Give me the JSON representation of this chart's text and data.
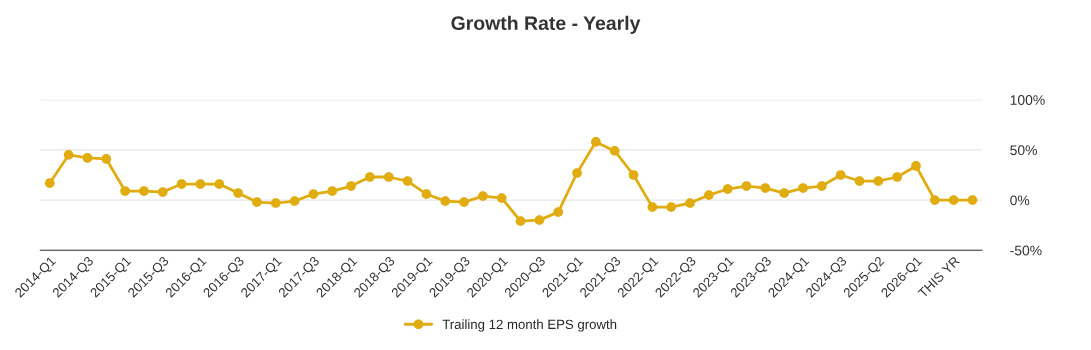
{
  "chart_data": {
    "type": "line",
    "title": "Growth Rate - Yearly",
    "categories": [
      "2014-Q1",
      null,
      "2014-Q3",
      null,
      "2015-Q1",
      null,
      "2015-Q3",
      null,
      "2016-Q1",
      null,
      "2016-Q3",
      null,
      "2017-Q1",
      null,
      "2017-Q3",
      null,
      "2018-Q1",
      null,
      "2018-Q3",
      null,
      "2019-Q1",
      null,
      "2019-Q3",
      null,
      "2020-Q1",
      null,
      "2020-Q3",
      null,
      "2021-Q1",
      null,
      "2021-Q3",
      null,
      "2022-Q1",
      null,
      "2022-Q3",
      null,
      "2023-Q1",
      null,
      "2023-Q3",
      null,
      "2024-Q1",
      null,
      "2024-Q3",
      null,
      "2025-Q2",
      null,
      "2026-Q1",
      null,
      "THIS YR",
      null
    ],
    "series": [
      {
        "name": "Trailing 12 month EPS growth",
        "color": "#e0ac10",
        "values": [
          17,
          45,
          42,
          41,
          9,
          9,
          8,
          16,
          16,
          16,
          7,
          -2,
          -3,
          -1,
          6,
          9,
          14,
          23,
          23,
          19,
          6,
          -1,
          -2,
          4,
          2,
          -21,
          -20,
          -12,
          27,
          58,
          49,
          25,
          -7,
          -7,
          -3,
          5,
          11,
          14,
          12,
          7,
          12,
          14,
          25,
          19,
          19,
          23,
          34,
          0,
          0,
          0
        ]
      }
    ],
    "ylim": [
      -50,
      100
    ],
    "yticks": [
      {
        "value": -50,
        "label": "-50%"
      },
      {
        "value": 0,
        "label": "0%"
      },
      {
        "value": 50,
        "label": "50%"
      },
      {
        "value": 100,
        "label": "100%"
      }
    ],
    "grid": "y",
    "legend": "bottom",
    "marker": "circle",
    "line_style": "solid"
  }
}
